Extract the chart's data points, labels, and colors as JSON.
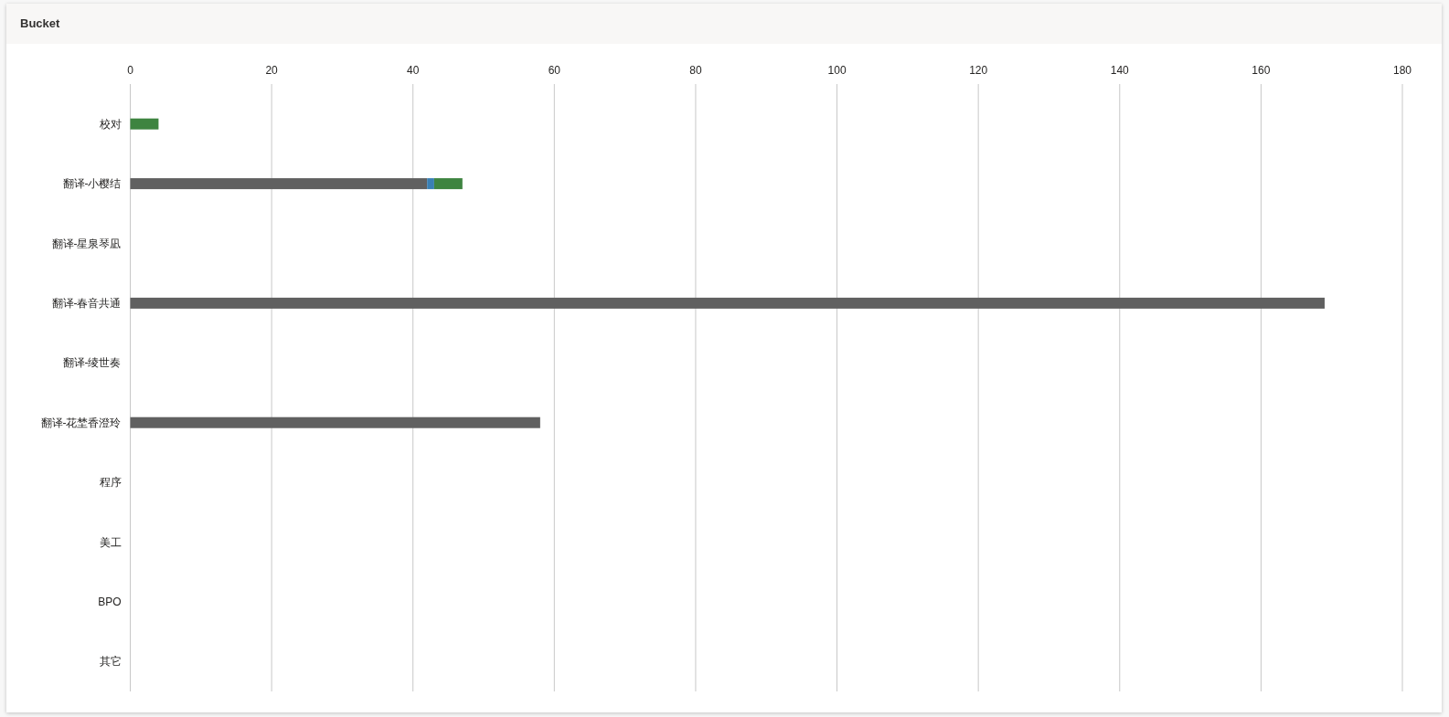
{
  "chart_data": {
    "type": "bar",
    "orientation": "horizontal",
    "stacked": true,
    "title": "Bucket",
    "categories": [
      "校对",
      "翻译-小樱结",
      "翻译-星泉琴凪",
      "翻译-春音共通",
      "翻译-绫世奏",
      "翻译-花埜香澄玲",
      "程序",
      "美工",
      "BPO",
      "其它"
    ],
    "series": [
      {
        "color": "#606060",
        "values": [
          null,
          42,
          null,
          169,
          null,
          58,
          null,
          null,
          null,
          null
        ]
      },
      {
        "color": "#3a80b4",
        "values": [
          null,
          1,
          null,
          null,
          null,
          null,
          null,
          null,
          null,
          null
        ]
      },
      {
        "color": "#3e8440",
        "values": [
          4,
          4,
          null,
          null,
          null,
          null,
          null,
          null,
          null,
          null
        ]
      }
    ],
    "xlim": [
      0,
      180
    ],
    "xticks": [
      0,
      20,
      40,
      60,
      80,
      100,
      120,
      140,
      160,
      180
    ],
    "grid": "x"
  }
}
